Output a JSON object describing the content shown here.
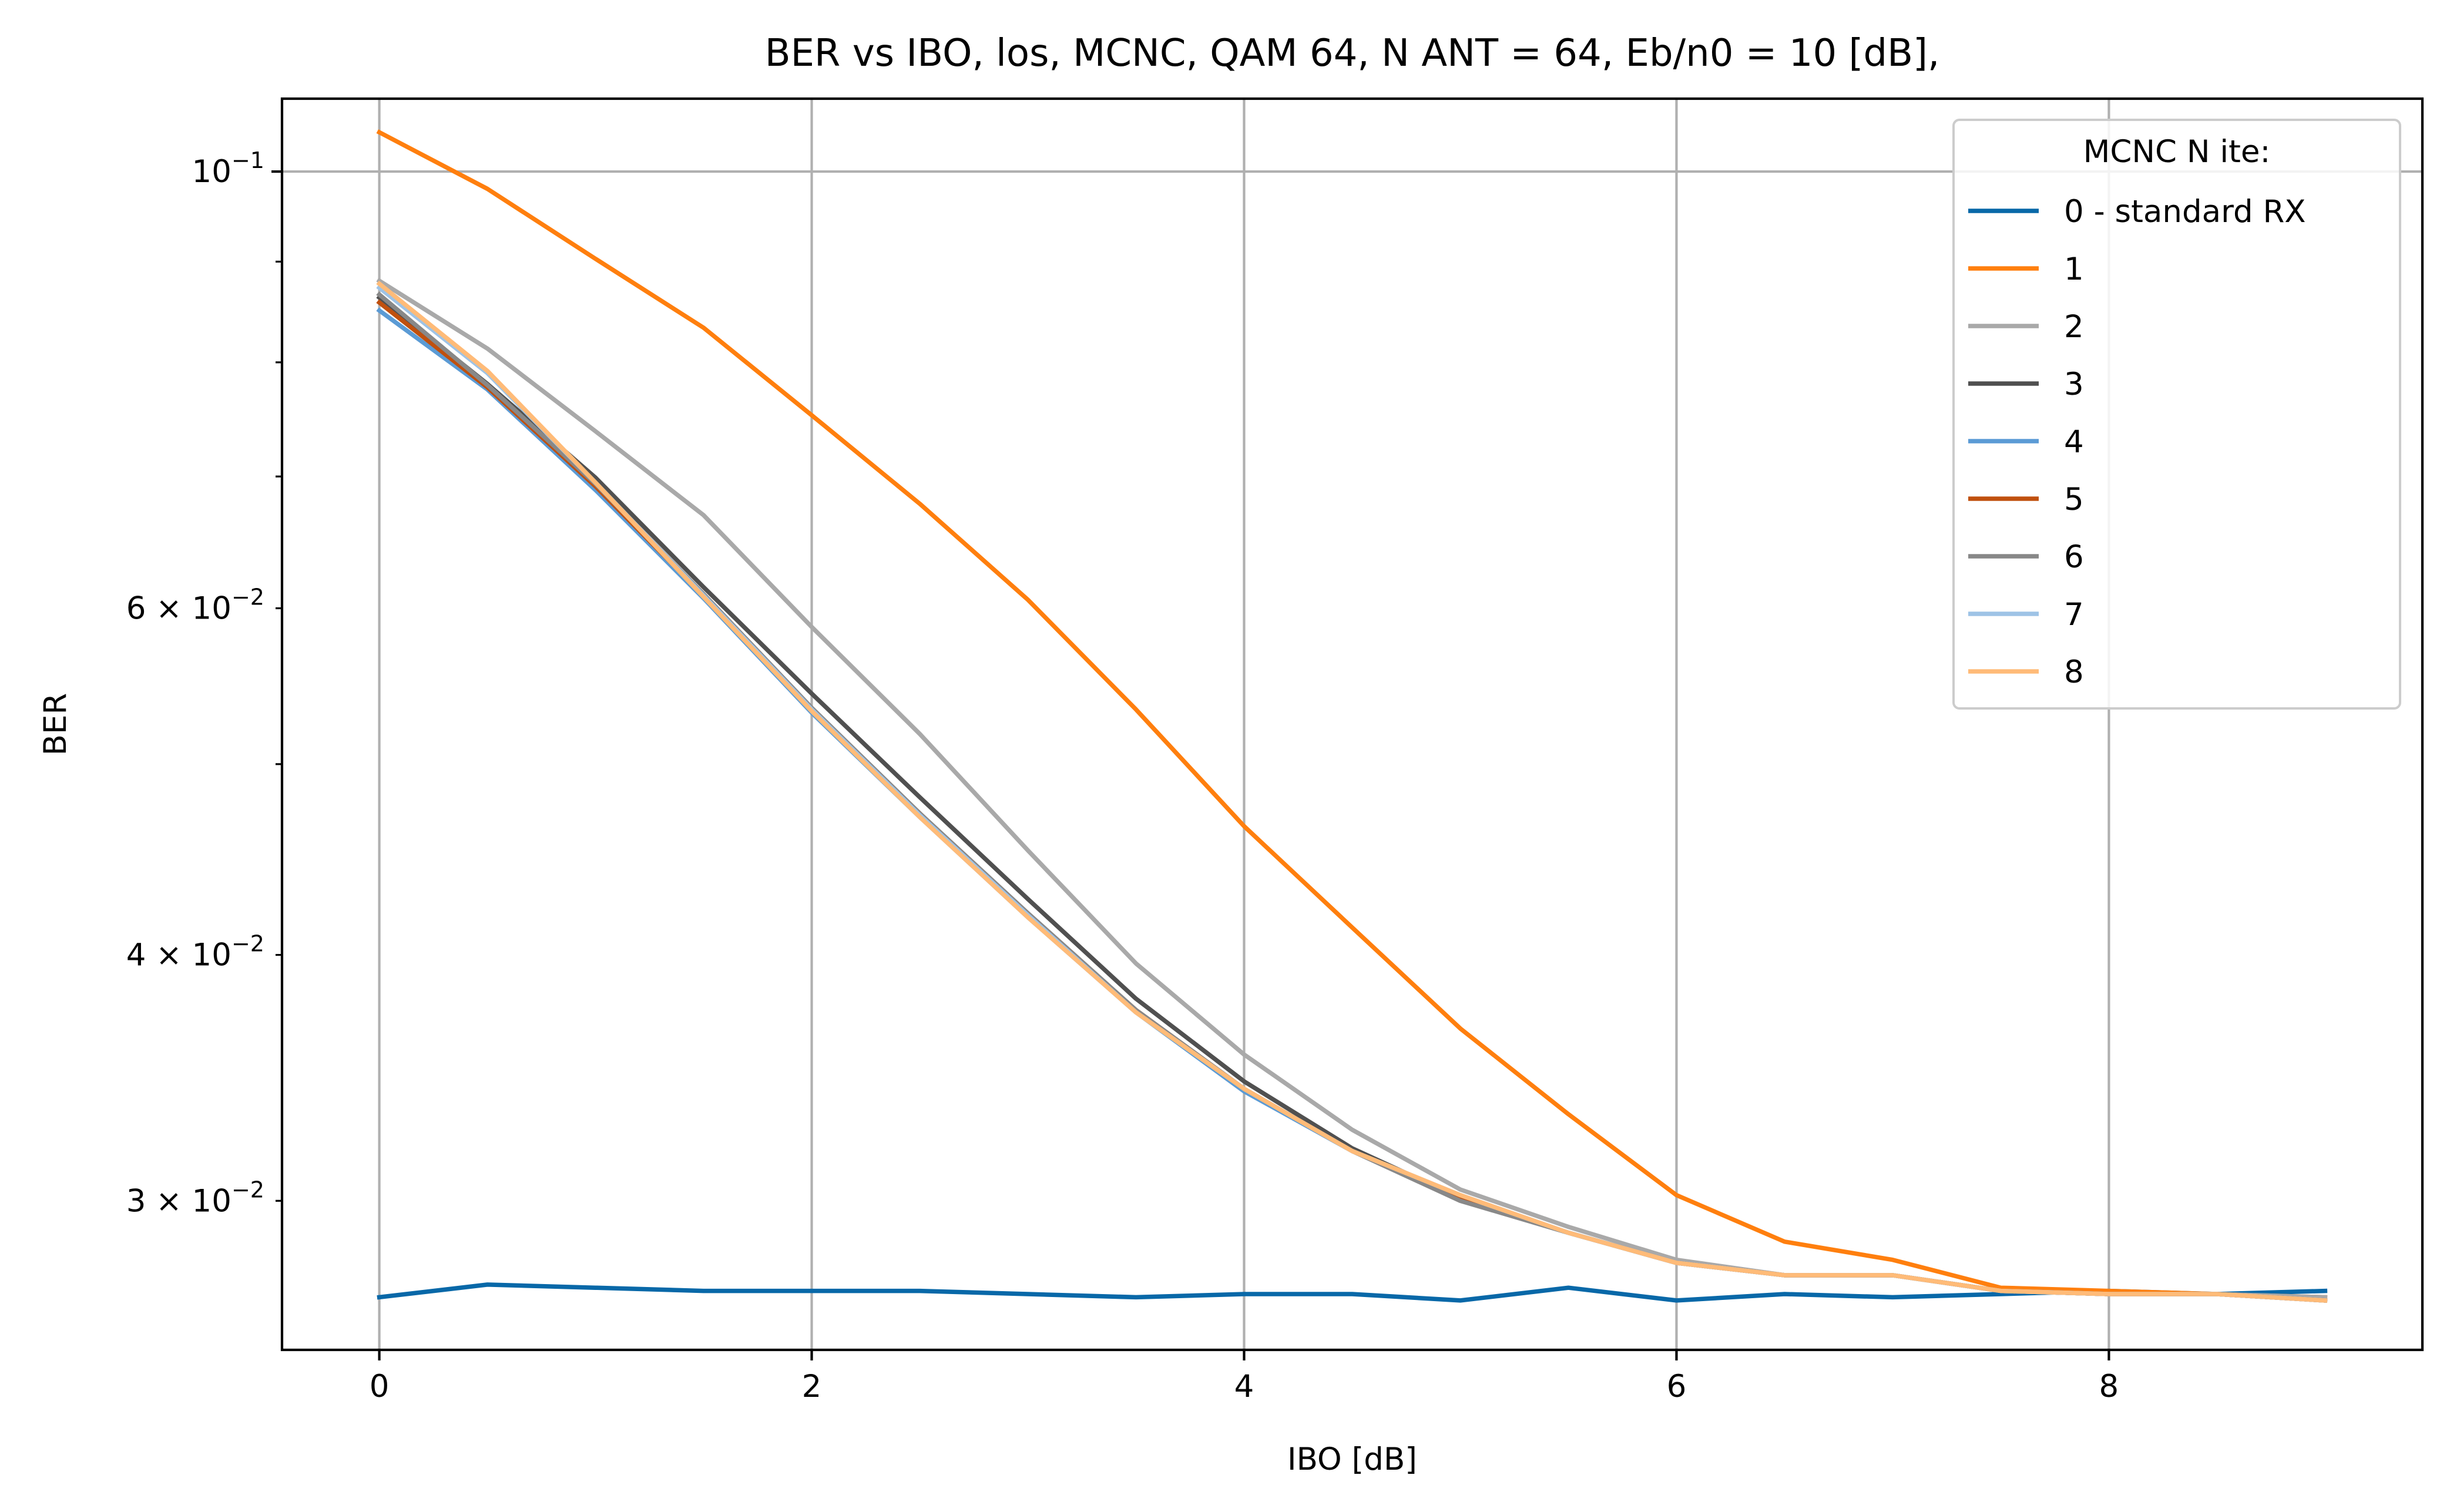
{
  "chart_data": {
    "type": "line",
    "title": "BER vs IBO, los, MCNC, QAM 64, N ANT = 64, Eb/n0 = 10 [dB],",
    "xlabel": "IBO [dB]",
    "ylabel": "BER",
    "xlim": [
      -0.45,
      9.45
    ],
    "ylim": [
      0.0252,
      0.1089
    ],
    "yscale": "log",
    "grid": true,
    "legend": {
      "title": "MCNC N ite:",
      "position": "top-right"
    },
    "x_ticks": [
      {
        "value": 0,
        "label": "0"
      },
      {
        "value": 2,
        "label": "2"
      },
      {
        "value": 4,
        "label": "4"
      },
      {
        "value": 6,
        "label": "6"
      },
      {
        "value": 8,
        "label": "8"
      }
    ],
    "y_major_ticks": [
      {
        "value": 0.1,
        "base": "10",
        "exp": "−1",
        "coef": ""
      }
    ],
    "y_minor_ticks": [
      {
        "value": 0.03,
        "base": "10",
        "exp": "−2",
        "coef": "3 × "
      },
      {
        "value": 0.04,
        "base": "10",
        "exp": "−2",
        "coef": "4 × "
      },
      {
        "value": 0.05,
        "base": "",
        "exp": "",
        "coef": ""
      },
      {
        "value": 0.06,
        "base": "10",
        "exp": "−2",
        "coef": "6 × "
      },
      {
        "value": 0.07,
        "base": "",
        "exp": "",
        "coef": ""
      },
      {
        "value": 0.08,
        "base": "",
        "exp": "",
        "coef": ""
      },
      {
        "value": 0.09,
        "base": "",
        "exp": "",
        "coef": ""
      }
    ],
    "x": [
      0,
      0.5,
      1,
      1.5,
      2,
      2.5,
      3,
      3.5,
      4,
      4.5,
      5,
      5.5,
      6,
      6.5,
      7,
      7.5,
      8,
      8.5,
      9
    ],
    "series": [
      {
        "name": "0 - standard RX",
        "color": "#0868a8",
        "values": [
          0.0268,
          0.0272,
          0.0271,
          0.027,
          0.027,
          0.027,
          0.0269,
          0.0268,
          0.0269,
          0.0269,
          0.0267,
          0.0271,
          0.0267,
          0.0269,
          0.0268,
          0.0269,
          0.027,
          0.0269,
          0.027
        ]
      },
      {
        "name": "1",
        "color": "#ff7f0e",
        "values": [
          0.1047,
          0.098,
          0.0903,
          0.0833,
          0.0752,
          0.0678,
          0.0606,
          0.0533,
          0.0465,
          0.0413,
          0.0367,
          0.0332,
          0.0302,
          0.0286,
          0.028,
          0.0271,
          0.027,
          0.0269,
          0.0268
        ]
      },
      {
        "name": "2",
        "color": "#a9a9a9",
        "values": [
          0.088,
          0.0813,
          0.0738,
          0.0669,
          0.0587,
          0.0518,
          0.0452,
          0.0396,
          0.0356,
          0.0326,
          0.0304,
          0.0291,
          0.028,
          0.0275,
          0.0275,
          0.027,
          0.0269,
          0.0269,
          0.0268
        ]
      },
      {
        "name": "3",
        "color": "#505050",
        "values": [
          0.0863,
          0.078,
          0.0699,
          0.0615,
          0.0543,
          0.0481,
          0.0427,
          0.038,
          0.0345,
          0.0319,
          0.0301,
          0.0289,
          0.0279,
          0.0275,
          0.0275,
          0.027,
          0.0269,
          0.0269,
          0.0267
        ]
      },
      {
        "name": "4",
        "color": "#5b9bd5",
        "values": [
          0.085,
          0.0775,
          0.0689,
          0.0607,
          0.0531,
          0.047,
          0.0418,
          0.0374,
          0.0341,
          0.0318,
          0.0301,
          0.0289,
          0.0279,
          0.0275,
          0.0275,
          0.027,
          0.0269,
          0.0269,
          0.0267
        ]
      },
      {
        "name": "5",
        "color": "#c0500e",
        "values": [
          0.0858,
          0.0777,
          0.0692,
          0.0609,
          0.0533,
          0.0472,
          0.0419,
          0.0375,
          0.0342,
          0.0318,
          0.0301,
          0.0289,
          0.0279,
          0.0275,
          0.0275,
          0.027,
          0.0269,
          0.0269,
          0.0267
        ]
      },
      {
        "name": "6",
        "color": "#888888",
        "values": [
          0.0866,
          0.0779,
          0.0694,
          0.061,
          0.0534,
          0.0472,
          0.042,
          0.0375,
          0.0342,
          0.0318,
          0.03,
          0.0289,
          0.0279,
          0.0275,
          0.0275,
          0.027,
          0.0269,
          0.0269,
          0.0267
        ]
      },
      {
        "name": "7",
        "color": "#9ec3e6",
        "values": [
          0.0873,
          0.079,
          0.0695,
          0.0609,
          0.0533,
          0.0471,
          0.0419,
          0.0374,
          0.0342,
          0.0318,
          0.0302,
          0.0289,
          0.0279,
          0.0275,
          0.0275,
          0.027,
          0.0269,
          0.0269,
          0.0267
        ]
      },
      {
        "name": "8",
        "color": "#ffbb78",
        "values": [
          0.0877,
          0.0792,
          0.0695,
          0.0608,
          0.0532,
          0.047,
          0.0418,
          0.0374,
          0.0342,
          0.0318,
          0.0302,
          0.0289,
          0.0279,
          0.0275,
          0.0275,
          0.027,
          0.0269,
          0.0269,
          0.0267
        ]
      }
    ]
  }
}
